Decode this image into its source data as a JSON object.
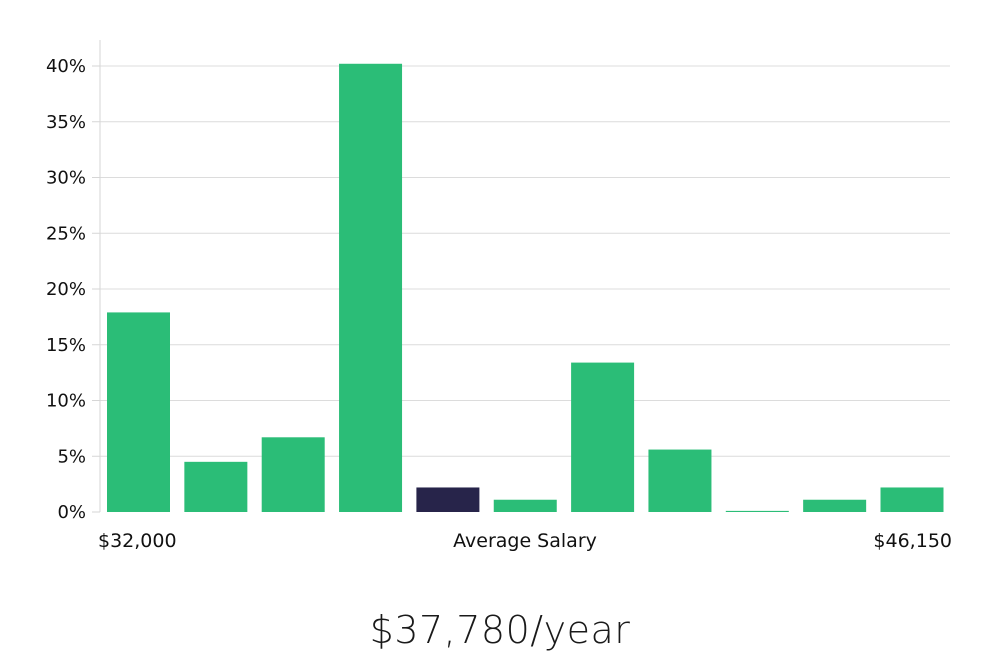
{
  "chart_data": {
    "type": "bar",
    "title": "",
    "xlabel": "Average Salary",
    "ylabel": "",
    "ylim": [
      0,
      42
    ],
    "yticks": [
      0,
      5,
      10,
      15,
      20,
      25,
      30,
      35,
      40
    ],
    "ytick_suffix": "%",
    "values": [
      17.9,
      4.5,
      6.7,
      40.2,
      2.2,
      1.1,
      13.4,
      5.6,
      0.1,
      1.1,
      2.2
    ],
    "highlight_index": 4,
    "x_min_label": "$32,000",
    "x_max_label": "$46,150",
    "colors": {
      "bar": "#2bbd77",
      "highlight": "#27244a"
    }
  },
  "summary": {
    "salary": "$37,780/year"
  }
}
